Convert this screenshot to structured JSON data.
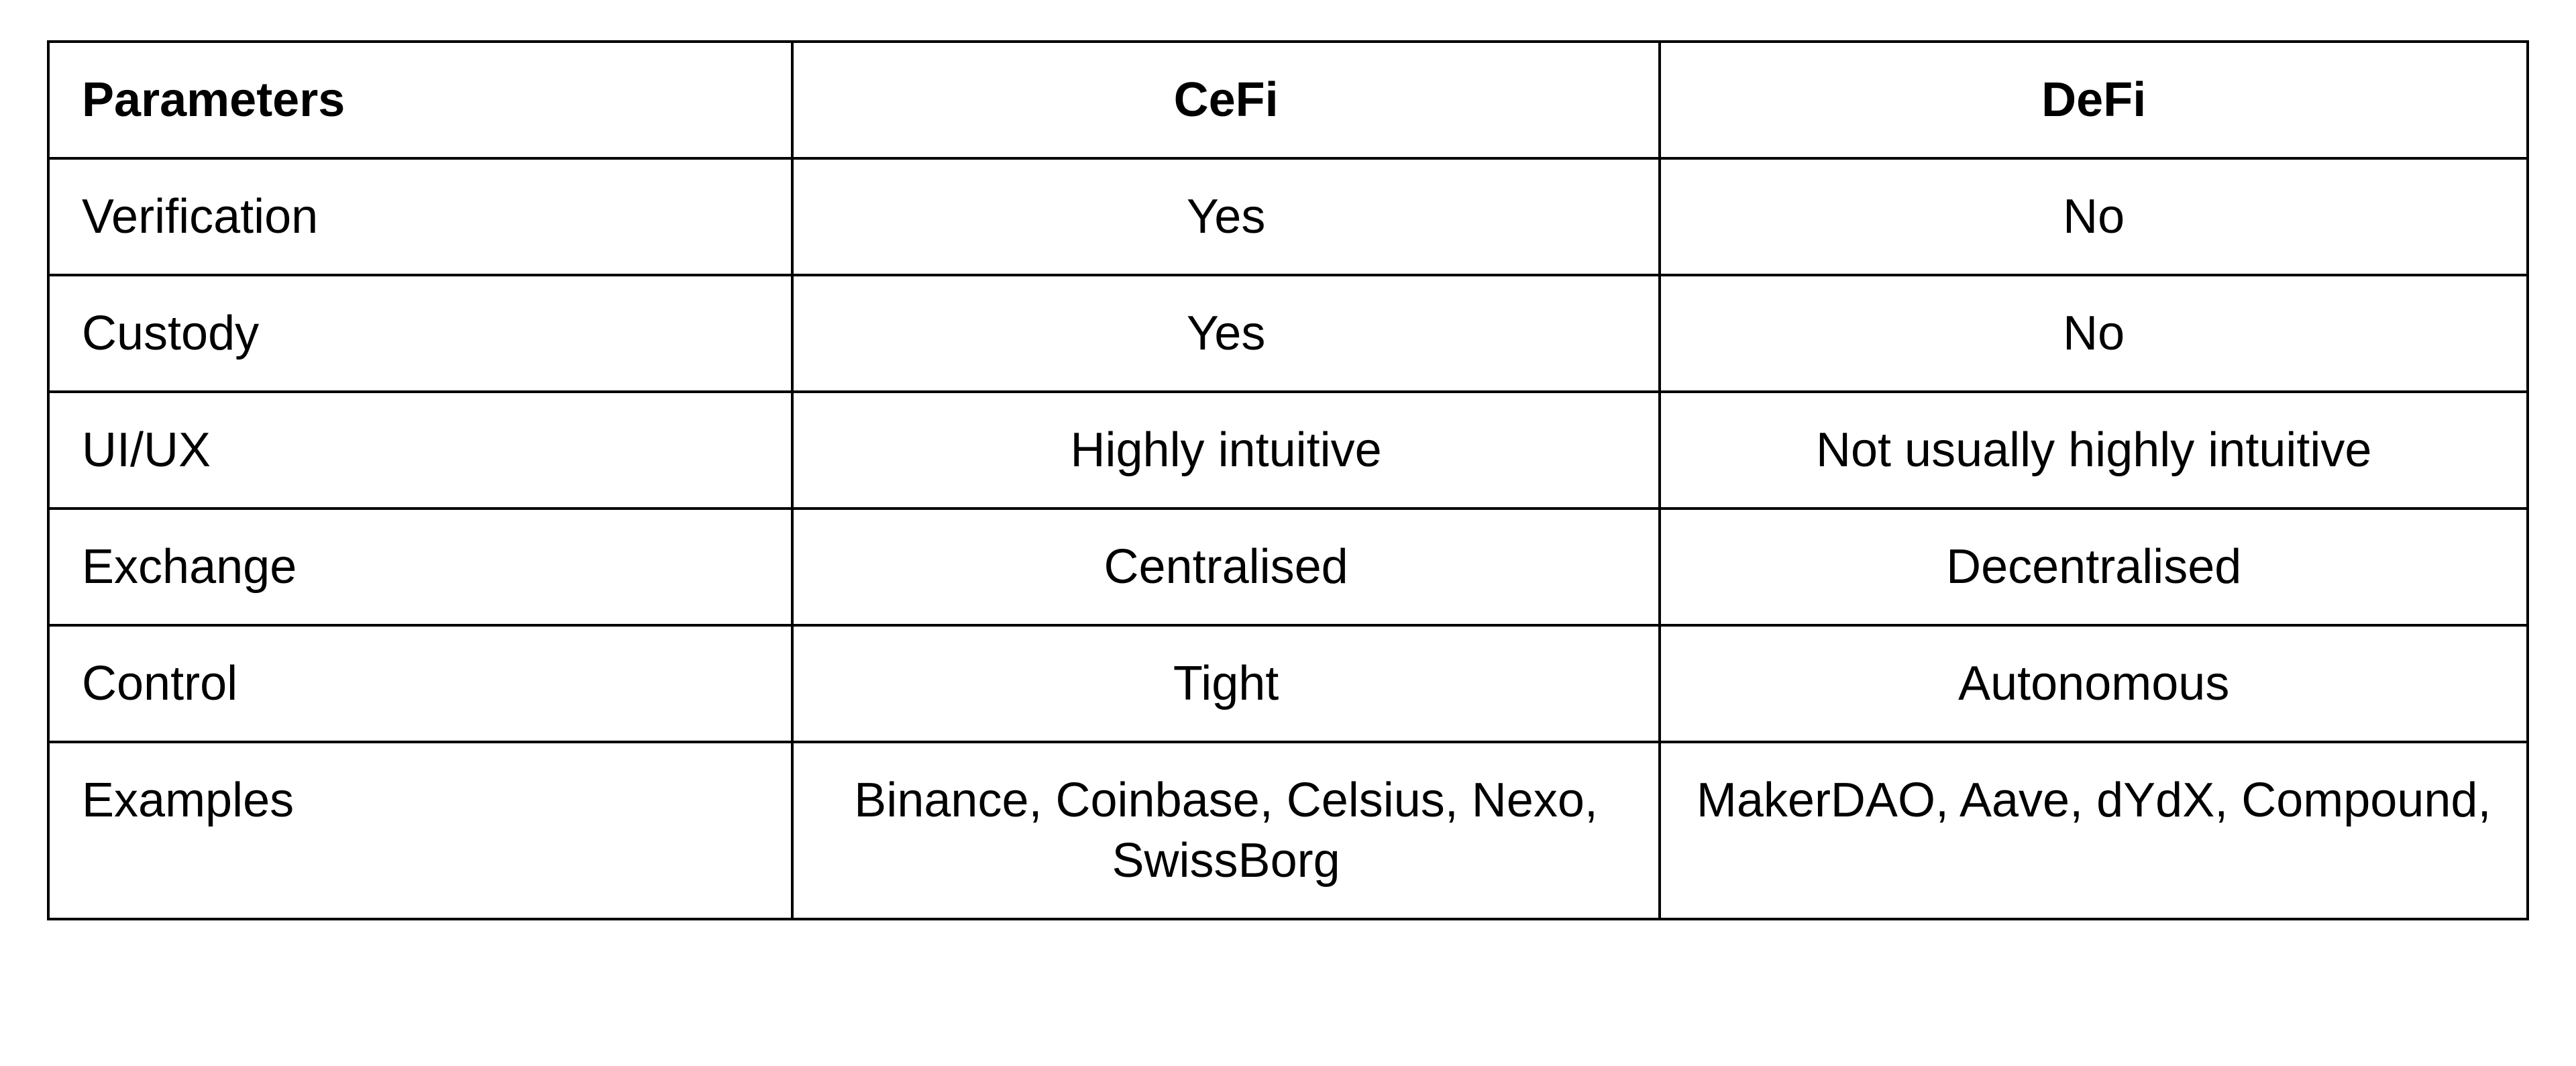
{
  "table": {
    "columns": [
      "Parameters",
      "CeFi",
      "DeFi"
    ],
    "column_align": [
      "left",
      "center",
      "center"
    ],
    "header_weight": "bold",
    "body_weight": "normal",
    "font_size_pt": 54,
    "border_color": "#000000",
    "background_color": "#ffffff",
    "text_color": "#000000",
    "column_widths_pct": [
      30,
      35,
      35
    ],
    "rows": [
      {
        "param": "Verification",
        "cefi": "Yes",
        "defi": "No"
      },
      {
        "param": "Custody",
        "cefi": "Yes",
        "defi": "No"
      },
      {
        "param": "UI/UX",
        "cefi": "Highly intuitive",
        "defi": "Not usually highly intuitive"
      },
      {
        "param": "Exchange",
        "cefi": "Centralised",
        "defi": "Decentralised"
      },
      {
        "param": "Control",
        "cefi": "Tight",
        "defi": "Autonomous"
      },
      {
        "param": "Examples",
        "cefi": "Binance, Coinbase, Celsius, Nexo, SwissBorg",
        "defi": "MakerDAO, Aave, dYdX, Compound,"
      }
    ]
  }
}
